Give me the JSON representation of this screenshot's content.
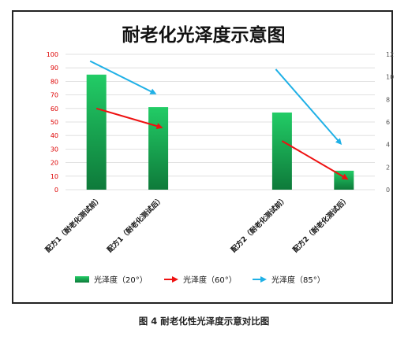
{
  "chart_data": {
    "type": "bar",
    "title": "耐老化光泽度示意图",
    "categories": [
      "配方1（耐老化测试前）",
      "配方1（耐老化测试后）",
      "",
      "配方2（耐老化测试前）",
      "配方2（耐老化测试后）"
    ],
    "y_left": {
      "lim": [
        0,
        100
      ],
      "ticks": [
        0,
        10,
        20,
        30,
        40,
        50,
        60,
        70,
        80,
        90,
        100
      ]
    },
    "y_right": {
      "lim": [
        0,
        12
      ],
      "ticks": [
        0,
        2,
        4,
        6,
        8,
        10,
        12
      ]
    },
    "series": [
      {
        "name": "光泽度（20°）",
        "type": "bar",
        "axis": "left",
        "values": [
          85,
          61,
          null,
          57,
          14
        ]
      },
      {
        "name": "光泽度（60°）",
        "type": "arrow",
        "axis": "left",
        "values": [
          60,
          46,
          null,
          36,
          8
        ]
      },
      {
        "name": "光泽度（85°）",
        "type": "arrow",
        "axis": "left",
        "values": [
          95,
          71,
          null,
          89,
          34
        ]
      }
    ],
    "grid": true,
    "legend_position": "bottom",
    "colors": {
      "bar_top": "#22cc66",
      "bar_bottom": "#0e7a3a",
      "arrow60": "#ee1111",
      "arrow85": "#1fb0e6",
      "left_ticks": "#dd0000",
      "right_ticks": "#555555",
      "grid": "#d9d9d9"
    }
  },
  "caption": "图 4  耐老化性光泽度示意对比图"
}
